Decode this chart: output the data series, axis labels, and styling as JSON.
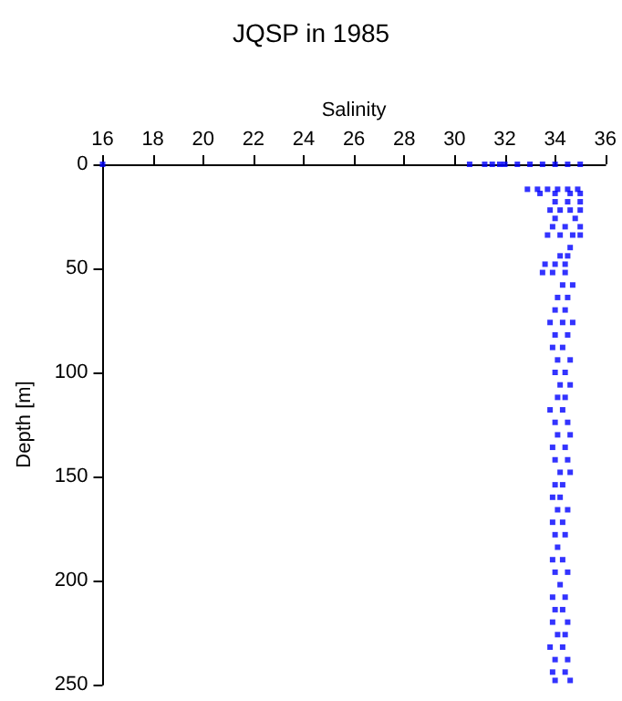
{
  "chart_data": {
    "type": "scatter",
    "title": "JQSP in 1985",
    "xlabel": "Salinity",
    "ylabel": "Depth [m]",
    "xlim": [
      16,
      36
    ],
    "xticks": [
      16,
      18,
      20,
      22,
      24,
      26,
      28,
      30,
      32,
      34,
      36
    ],
    "ylim": [
      250,
      0
    ],
    "yticks": [
      0,
      50,
      100,
      150,
      200,
      250
    ],
    "marker": "square",
    "series": [
      {
        "color": "#0000ff",
        "x": [
          16,
          30.6,
          31.2,
          31.5,
          31.8,
          32.0,
          32.5,
          33,
          33.5,
          34,
          34.5,
          35,
          32.9,
          33.3,
          33.7,
          34.1,
          34.5,
          34.9,
          33.4,
          34.0,
          34.6,
          35.0,
          34.0,
          34.5,
          35.0,
          33.8,
          34.2,
          34.6,
          35.0,
          34.0,
          34.8,
          33.9,
          34.4,
          35.0,
          33.7,
          34.2,
          34.7,
          35.0,
          34.6,
          34.2,
          34.5,
          33.6,
          34.0,
          34.4,
          33.5,
          33.9,
          34.4,
          34.3,
          34.7,
          34.1,
          34.5,
          34.0,
          34.4,
          33.8,
          34.3,
          34.7,
          34.0,
          34.5,
          33.9,
          34.3,
          34.1,
          34.6,
          34.0,
          34.4,
          34.2,
          34.6,
          34.1,
          34.4,
          33.8,
          34.3,
          34.0,
          34.5,
          34.1,
          34.6,
          33.9,
          34.4,
          34.0,
          34.5,
          34.2,
          34.6,
          34.0,
          34.3,
          33.9,
          34.2,
          34.1,
          34.5,
          33.9,
          34.3,
          34.0,
          34.4,
          34.1,
          33.9,
          34.3,
          34.0,
          34.5,
          34.2,
          33.9,
          34.4,
          34.0,
          34.3,
          33.9,
          34.5,
          34.1,
          34.4,
          33.8,
          34.3,
          34.0,
          34.5,
          33.9,
          34.4,
          34.0,
          34.6
        ],
        "values": [
          0,
          0,
          0,
          0,
          0,
          0,
          0,
          0,
          0,
          0,
          0,
          0,
          12,
          12,
          12,
          12,
          12,
          12,
          14,
          14,
          14,
          14,
          18,
          18,
          18,
          22,
          22,
          22,
          22,
          26,
          26,
          30,
          30,
          30,
          34,
          34,
          34,
          34,
          40,
          44,
          44,
          48,
          48,
          48,
          52,
          52,
          52,
          58,
          58,
          64,
          64,
          70,
          70,
          76,
          76,
          76,
          82,
          82,
          88,
          88,
          94,
          94,
          100,
          100,
          106,
          106,
          112,
          112,
          118,
          118,
          124,
          124,
          130,
          130,
          136,
          136,
          142,
          142,
          148,
          148,
          154,
          154,
          160,
          160,
          166,
          166,
          172,
          172,
          178,
          178,
          184,
          190,
          190,
          196,
          196,
          202,
          208,
          208,
          214,
          214,
          220,
          220,
          226,
          226,
          232,
          232,
          238,
          238,
          244,
          244,
          248,
          248
        ]
      }
    ]
  }
}
